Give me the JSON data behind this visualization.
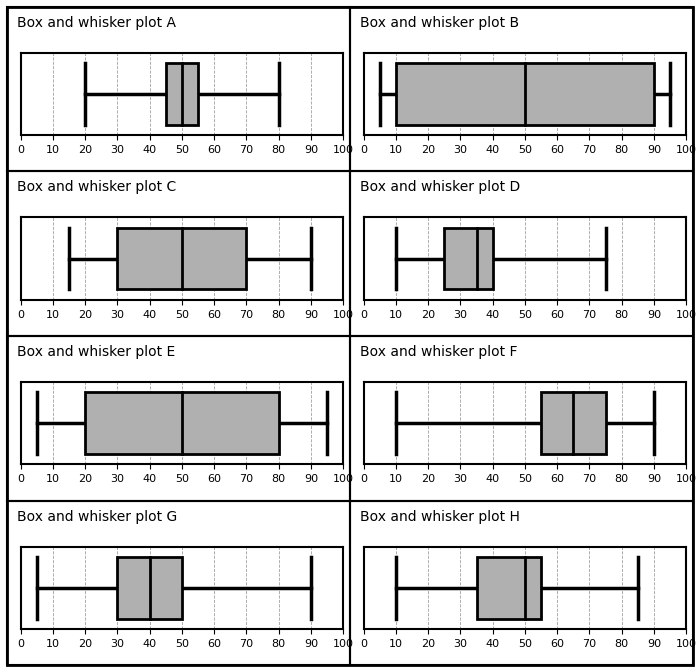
{
  "plots": [
    {
      "title": "Box and whisker plot A",
      "min": 20,
      "q1": 45,
      "median": 50,
      "q3": 55,
      "max": 80
    },
    {
      "title": "Box and whisker plot B",
      "min": 5,
      "q1": 10,
      "median": 50,
      "q3": 90,
      "max": 95
    },
    {
      "title": "Box and whisker plot C",
      "min": 15,
      "q1": 30,
      "median": 50,
      "q3": 70,
      "max": 90
    },
    {
      "title": "Box and whisker plot D",
      "min": 10,
      "q1": 25,
      "median": 35,
      "q3": 40,
      "max": 75
    },
    {
      "title": "Box and whisker plot E",
      "min": 5,
      "q1": 20,
      "median": 50,
      "q3": 80,
      "max": 95
    },
    {
      "title": "Box and whisker plot F",
      "min": 10,
      "q1": 55,
      "median": 65,
      "q3": 75,
      "max": 90
    },
    {
      "title": "Box and whisker plot G",
      "min": 5,
      "q1": 30,
      "median": 40,
      "q3": 50,
      "max": 90
    },
    {
      "title": "Box and whisker plot H",
      "min": 10,
      "q1": 35,
      "median": 50,
      "q3": 55,
      "max": 85
    }
  ],
  "xlim": [
    0,
    100
  ],
  "xticks": [
    0,
    10,
    20,
    30,
    40,
    50,
    60,
    70,
    80,
    90,
    100
  ],
  "box_color": "#b0b0b0",
  "box_edge_color": "#000000",
  "whisker_color": "#000000",
  "title_fontsize": 10,
  "tick_fontsize": 8,
  "background_color": "#ffffff",
  "border_color": "#000000",
  "grid_color": "#888888"
}
